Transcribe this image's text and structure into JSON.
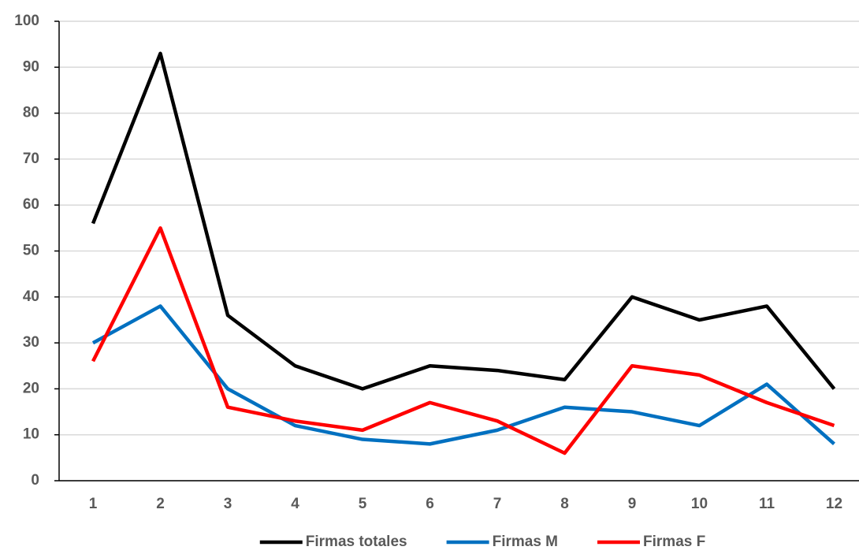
{
  "chart_data": {
    "type": "line",
    "categories": [
      "1",
      "2",
      "3",
      "4",
      "5",
      "6",
      "7",
      "8",
      "9",
      "10",
      "11",
      "12"
    ],
    "series": [
      {
        "name": "Firmas totales",
        "color": "#000000",
        "values": [
          56,
          93,
          36,
          25,
          20,
          25,
          24,
          22,
          40,
          35,
          38,
          20
        ]
      },
      {
        "name": "Firmas M",
        "color": "#0070c0",
        "values": [
          30,
          38,
          20,
          12,
          9,
          8,
          11,
          16,
          15,
          12,
          21,
          8
        ]
      },
      {
        "name": "Firmas F",
        "color": "#ff0000",
        "values": [
          26,
          55,
          16,
          13,
          11,
          17,
          13,
          6,
          25,
          23,
          17,
          12
        ]
      }
    ],
    "ylim": [
      0,
      100
    ],
    "yticks": [
      0,
      10,
      20,
      30,
      40,
      50,
      60,
      70,
      80,
      90,
      100
    ],
    "grid": true,
    "legend": "bottom"
  }
}
